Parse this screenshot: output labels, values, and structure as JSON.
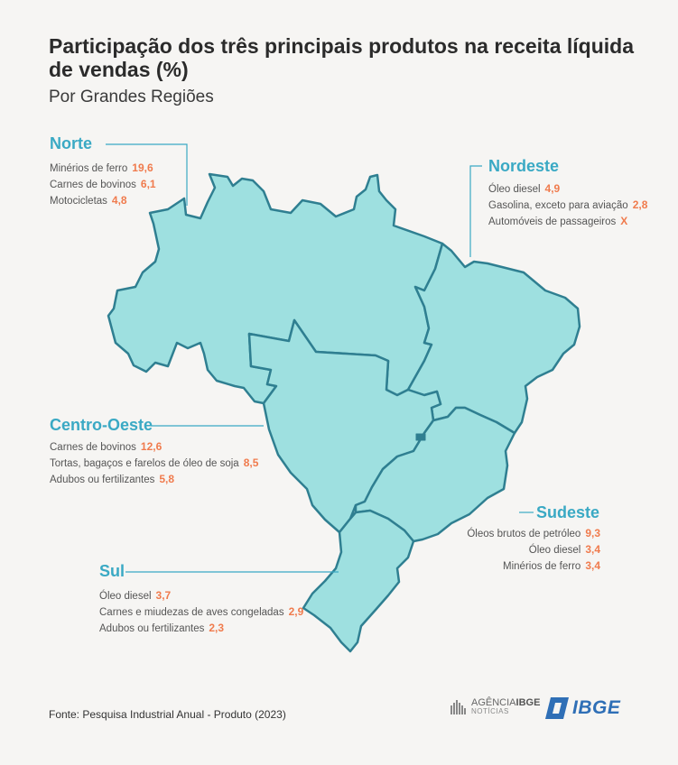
{
  "title": "Participação dos três principais produtos na receita líquida de vendas (%)",
  "subtitle": "Por Grandes Regiões",
  "colors": {
    "map_fill": "#9ee0e0",
    "map_stroke": "#2f7f91",
    "region_label": "#3aa9c4",
    "value": "#f07b4d"
  },
  "regions": {
    "norte": {
      "name": "Norte",
      "items": [
        {
          "label": "Minérios de ferro",
          "value": "19,6"
        },
        {
          "label": "Carnes de bovinos",
          "value": "6,1"
        },
        {
          "label": "Motocicletas",
          "value": "4,8"
        }
      ]
    },
    "nordeste": {
      "name": "Nordeste",
      "items": [
        {
          "label": "Óleo diesel",
          "value": "4,9"
        },
        {
          "label": "Gasolina, exceto para aviação",
          "value": "2,8"
        },
        {
          "label": "Automóveis de passageiros",
          "value": "X"
        }
      ]
    },
    "centro_oeste": {
      "name": "Centro-Oeste",
      "items": [
        {
          "label": "Carnes de bovinos",
          "value": "12,6"
        },
        {
          "label": "Tortas, bagaços e farelos de óleo de soja",
          "value": "8,5"
        },
        {
          "label": "Adubos ou fertilizantes",
          "value": "5,8"
        }
      ]
    },
    "sudeste": {
      "name": "Sudeste",
      "items": [
        {
          "label": "Óleos brutos de petróleo",
          "value": "9,3"
        },
        {
          "label": "Óleo diesel",
          "value": "3,4"
        },
        {
          "label": "Minérios de ferro",
          "value": "3,4"
        }
      ]
    },
    "sul": {
      "name": "Sul",
      "items": [
        {
          "label": "Óleo diesel",
          "value": "3,7"
        },
        {
          "label": "Carnes e miudezas de aves congeladas",
          "value": "2,9"
        },
        {
          "label": "Adubos ou fertilizantes",
          "value": "2,3"
        }
      ]
    }
  },
  "source": "Fonte: Pesquisa Industrial Anual - Produto (2023)",
  "logos": {
    "agencia_line1": "AGÊNCIA",
    "agencia_line1_bold": "IBGE",
    "agencia_line2": "NOTÍCIAS",
    "ibge": "IBGE"
  }
}
